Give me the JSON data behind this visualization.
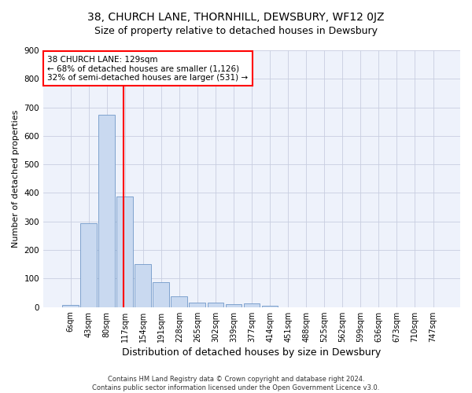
{
  "title": "38, CHURCH LANE, THORNHILL, DEWSBURY, WF12 0JZ",
  "subtitle": "Size of property relative to detached houses in Dewsbury",
  "xlabel": "Distribution of detached houses by size in Dewsbury",
  "ylabel": "Number of detached properties",
  "bar_labels": [
    "6sqm",
    "43sqm",
    "80sqm",
    "117sqm",
    "154sqm",
    "191sqm",
    "228sqm",
    "265sqm",
    "302sqm",
    "339sqm",
    "377sqm",
    "414sqm",
    "451sqm",
    "488sqm",
    "525sqm",
    "562sqm",
    "599sqm",
    "636sqm",
    "673sqm",
    "710sqm",
    "747sqm"
  ],
  "bar_values": [
    8,
    293,
    675,
    388,
    150,
    88,
    38,
    15,
    15,
    10,
    13,
    5,
    0,
    0,
    0,
    0,
    0,
    0,
    0,
    0,
    0
  ],
  "bar_color": "#c9d9f0",
  "bar_edge_color": "#7098c8",
  "vline_x": 2.93,
  "annotation_text": "38 CHURCH LANE: 129sqm\n← 68% of detached houses are smaller (1,126)\n32% of semi-detached houses are larger (531) →",
  "annotation_box_color": "white",
  "annotation_box_edge_color": "red",
  "vline_color": "red",
  "ylim": [
    0,
    900
  ],
  "yticks": [
    0,
    100,
    200,
    300,
    400,
    500,
    600,
    700,
    800,
    900
  ],
  "background_color": "#eef2fb",
  "grid_color": "#c8cee0",
  "footer_line1": "Contains HM Land Registry data © Crown copyright and database right 2024.",
  "footer_line2": "Contains public sector information licensed under the Open Government Licence v3.0.",
  "title_fontsize": 10,
  "subtitle_fontsize": 9,
  "xlabel_fontsize": 9,
  "ylabel_fontsize": 8,
  "tick_fontsize": 7,
  "annotation_fontsize": 7.5,
  "footer_fontsize": 6
}
